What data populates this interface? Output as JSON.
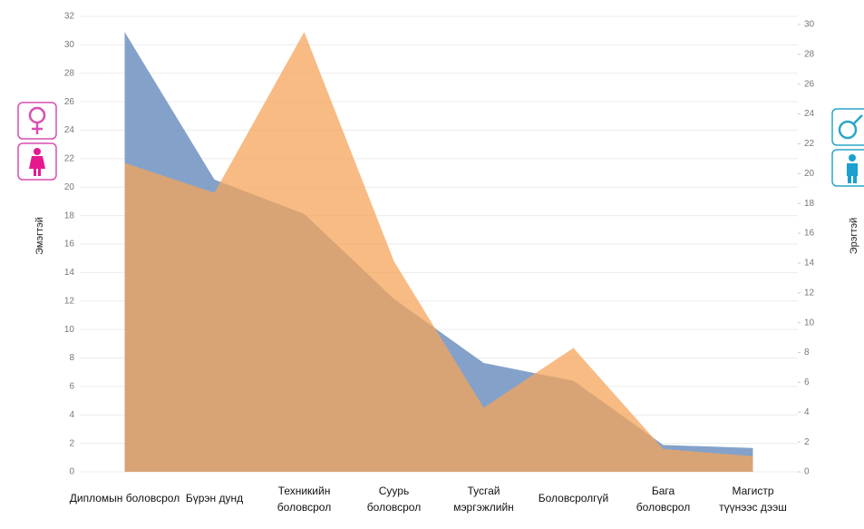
{
  "chart_data": {
    "type": "area",
    "y_label": "Эмэгтэй",
    "y2_label": "Эрэгтэй",
    "categories": [
      "Дипломын боловсрол",
      "Бүрэн дунд",
      "Техникийн\nболовсрол",
      "Суурь\nболовсрол",
      "Тусгай\nмэргэжлийн",
      "Боловсролгүй",
      "Бага\nболовсрол",
      "Магистр\nтүүнээс дээш"
    ],
    "series": [
      {
        "name": "Эрэгтэй",
        "color": "#6f92c0",
        "axis": "y2",
        "values": [
          29.5,
          19.6,
          17.3,
          11.6,
          7.3,
          6.1,
          1.8,
          1.6
        ]
      },
      {
        "name": "Эмэгтэй",
        "color": "#f4a45a",
        "axis": "y",
        "values": [
          21.7,
          19.6,
          30.9,
          14.8,
          4.5,
          8.7,
          1.6,
          1.1
        ]
      }
    ],
    "ylim": [
      0,
      32
    ],
    "yticks": [
      0,
      2,
      4,
      6,
      8,
      10,
      12,
      14,
      16,
      18,
      20,
      22,
      24,
      26,
      28,
      30,
      32
    ],
    "y2lim": [
      0,
      30
    ],
    "y2ticks": [
      0,
      2,
      4,
      6,
      8,
      10,
      12,
      14,
      16,
      18,
      20,
      22,
      24,
      26,
      28,
      30
    ],
    "grid": true
  }
}
